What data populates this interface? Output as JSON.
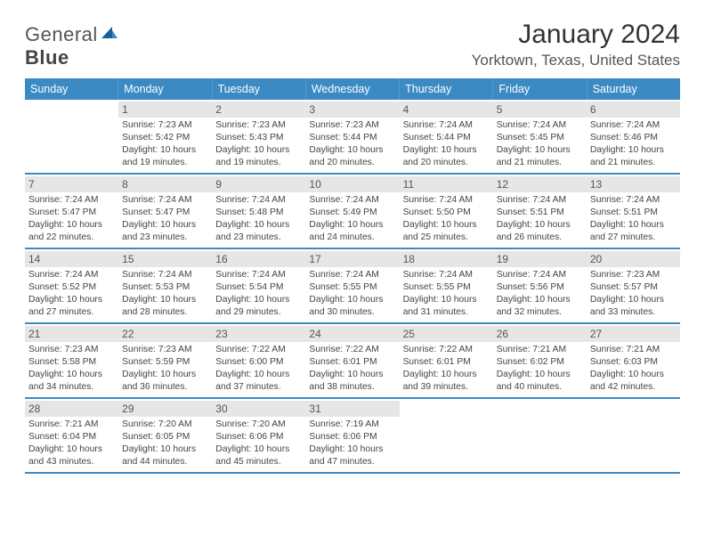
{
  "logo": {
    "text_prefix": "General",
    "text_suffix": "Blue"
  },
  "title": "January 2024",
  "location": "Yorktown, Texas, United States",
  "colors": {
    "header_bg": "#3b8ac4",
    "daynum_bg": "#e6e6e6",
    "text": "#444444"
  },
  "layout": {
    "columns": 7,
    "rows": 5,
    "first_day_column": 1
  },
  "fonts": {
    "title_size": 30,
    "location_size": 17,
    "weekday_size": 12.5,
    "body_size": 10.3,
    "daynum_size": 12
  },
  "weekdays": [
    "Sunday",
    "Monday",
    "Tuesday",
    "Wednesday",
    "Thursday",
    "Friday",
    "Saturday"
  ],
  "days": [
    {
      "n": 1,
      "sunrise": "7:23 AM",
      "sunset": "5:42 PM",
      "daylight": "10 hours and 19 minutes."
    },
    {
      "n": 2,
      "sunrise": "7:23 AM",
      "sunset": "5:43 PM",
      "daylight": "10 hours and 19 minutes."
    },
    {
      "n": 3,
      "sunrise": "7:23 AM",
      "sunset": "5:44 PM",
      "daylight": "10 hours and 20 minutes."
    },
    {
      "n": 4,
      "sunrise": "7:24 AM",
      "sunset": "5:44 PM",
      "daylight": "10 hours and 20 minutes."
    },
    {
      "n": 5,
      "sunrise": "7:24 AM",
      "sunset": "5:45 PM",
      "daylight": "10 hours and 21 minutes."
    },
    {
      "n": 6,
      "sunrise": "7:24 AM",
      "sunset": "5:46 PM",
      "daylight": "10 hours and 21 minutes."
    },
    {
      "n": 7,
      "sunrise": "7:24 AM",
      "sunset": "5:47 PM",
      "daylight": "10 hours and 22 minutes."
    },
    {
      "n": 8,
      "sunrise": "7:24 AM",
      "sunset": "5:47 PM",
      "daylight": "10 hours and 23 minutes."
    },
    {
      "n": 9,
      "sunrise": "7:24 AM",
      "sunset": "5:48 PM",
      "daylight": "10 hours and 23 minutes."
    },
    {
      "n": 10,
      "sunrise": "7:24 AM",
      "sunset": "5:49 PM",
      "daylight": "10 hours and 24 minutes."
    },
    {
      "n": 11,
      "sunrise": "7:24 AM",
      "sunset": "5:50 PM",
      "daylight": "10 hours and 25 minutes."
    },
    {
      "n": 12,
      "sunrise": "7:24 AM",
      "sunset": "5:51 PM",
      "daylight": "10 hours and 26 minutes."
    },
    {
      "n": 13,
      "sunrise": "7:24 AM",
      "sunset": "5:51 PM",
      "daylight": "10 hours and 27 minutes."
    },
    {
      "n": 14,
      "sunrise": "7:24 AM",
      "sunset": "5:52 PM",
      "daylight": "10 hours and 27 minutes."
    },
    {
      "n": 15,
      "sunrise": "7:24 AM",
      "sunset": "5:53 PM",
      "daylight": "10 hours and 28 minutes."
    },
    {
      "n": 16,
      "sunrise": "7:24 AM",
      "sunset": "5:54 PM",
      "daylight": "10 hours and 29 minutes."
    },
    {
      "n": 17,
      "sunrise": "7:24 AM",
      "sunset": "5:55 PM",
      "daylight": "10 hours and 30 minutes."
    },
    {
      "n": 18,
      "sunrise": "7:24 AM",
      "sunset": "5:55 PM",
      "daylight": "10 hours and 31 minutes."
    },
    {
      "n": 19,
      "sunrise": "7:24 AM",
      "sunset": "5:56 PM",
      "daylight": "10 hours and 32 minutes."
    },
    {
      "n": 20,
      "sunrise": "7:23 AM",
      "sunset": "5:57 PM",
      "daylight": "10 hours and 33 minutes."
    },
    {
      "n": 21,
      "sunrise": "7:23 AM",
      "sunset": "5:58 PM",
      "daylight": "10 hours and 34 minutes."
    },
    {
      "n": 22,
      "sunrise": "7:23 AM",
      "sunset": "5:59 PM",
      "daylight": "10 hours and 36 minutes."
    },
    {
      "n": 23,
      "sunrise": "7:22 AM",
      "sunset": "6:00 PM",
      "daylight": "10 hours and 37 minutes."
    },
    {
      "n": 24,
      "sunrise": "7:22 AM",
      "sunset": "6:01 PM",
      "daylight": "10 hours and 38 minutes."
    },
    {
      "n": 25,
      "sunrise": "7:22 AM",
      "sunset": "6:01 PM",
      "daylight": "10 hours and 39 minutes."
    },
    {
      "n": 26,
      "sunrise": "7:21 AM",
      "sunset": "6:02 PM",
      "daylight": "10 hours and 40 minutes."
    },
    {
      "n": 27,
      "sunrise": "7:21 AM",
      "sunset": "6:03 PM",
      "daylight": "10 hours and 42 minutes."
    },
    {
      "n": 28,
      "sunrise": "7:21 AM",
      "sunset": "6:04 PM",
      "daylight": "10 hours and 43 minutes."
    },
    {
      "n": 29,
      "sunrise": "7:20 AM",
      "sunset": "6:05 PM",
      "daylight": "10 hours and 44 minutes."
    },
    {
      "n": 30,
      "sunrise": "7:20 AM",
      "sunset": "6:06 PM",
      "daylight": "10 hours and 45 minutes."
    },
    {
      "n": 31,
      "sunrise": "7:19 AM",
      "sunset": "6:06 PM",
      "daylight": "10 hours and 47 minutes."
    }
  ],
  "labels": {
    "sunrise": "Sunrise:",
    "sunset": "Sunset:",
    "daylight": "Daylight:"
  }
}
